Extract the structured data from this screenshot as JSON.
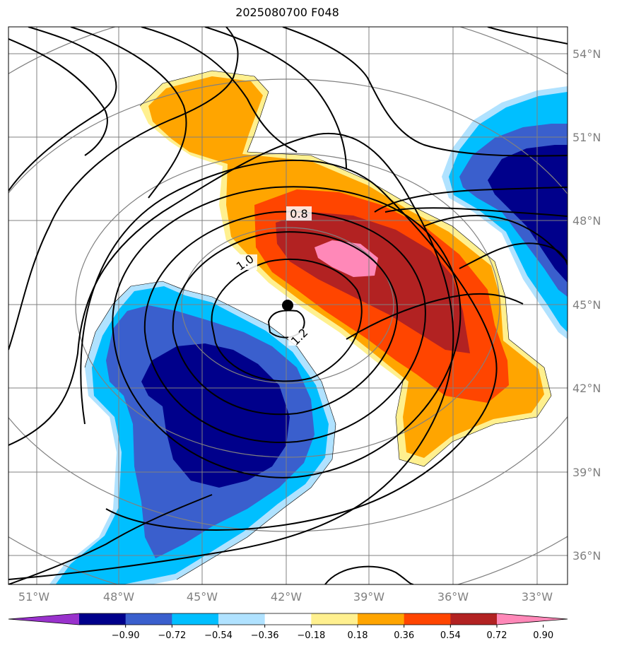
{
  "title": "2025080700 F048",
  "map": {
    "lat_labels": [
      "54°N",
      "51°N",
      "48°N",
      "45°N",
      "42°N",
      "39°N",
      "36°N"
    ],
    "lon_labels": [
      "51°W",
      "48°W",
      "45°W",
      "42°W",
      "39°W",
      "36°W",
      "33°W"
    ],
    "contour_labels": [
      "0.8",
      "1.0",
      "1.2"
    ],
    "center_marker": {
      "lat": 45,
      "lon": -42
    }
  },
  "colorbar": {
    "ticks": [
      "−0.90",
      "−0.72",
      "−0.54",
      "−0.36",
      "−0.18",
      "0.18",
      "0.36",
      "0.54",
      "0.72",
      "0.90"
    ],
    "colors": [
      "#9932cc",
      "#00008b",
      "#3a5fcd",
      "#00bfff",
      "#b0e2ff",
      "#ffffff",
      "#fff08f",
      "#ffa500",
      "#ff4500",
      "#b22222",
      "#ff88b8"
    ]
  },
  "colors": {
    "grid": "#808080",
    "contour": "#000000",
    "frame": "#000000"
  }
}
